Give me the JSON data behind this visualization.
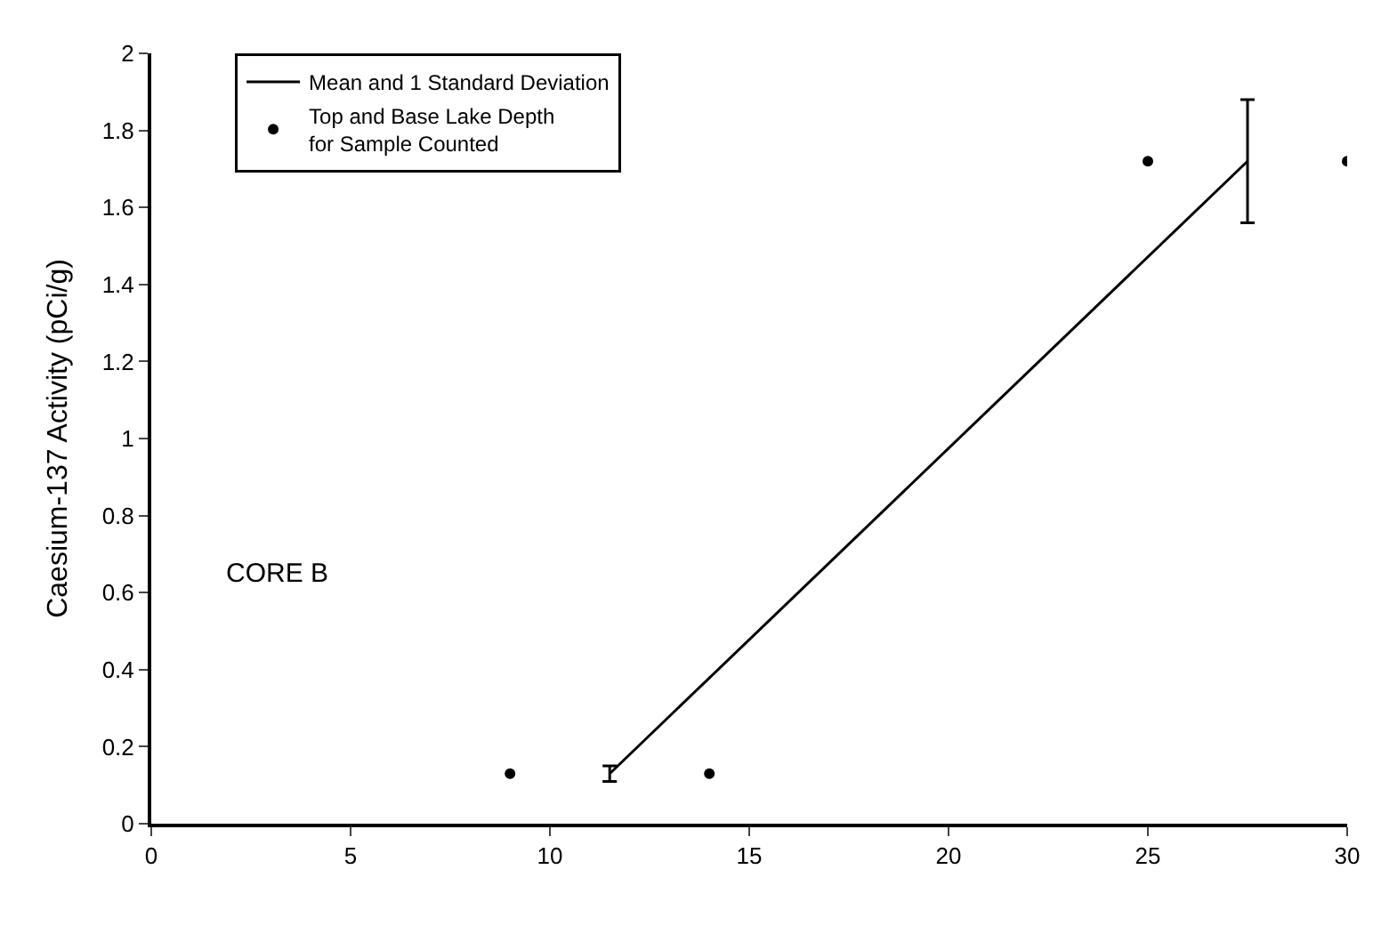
{
  "chart_data": {
    "type": "scatter",
    "ylabel": "Caesium-137 Activity (pCi/g)",
    "annotations": [
      "CORE B"
    ],
    "xlim": [
      0,
      30
    ],
    "xticks": [
      0,
      5,
      10,
      15,
      20,
      25,
      30
    ],
    "ylim": [
      0,
      2
    ],
    "yticks": [
      0,
      0.2,
      0.4,
      0.6,
      0.8,
      1,
      1.2,
      1.4,
      1.6,
      1.8,
      2
    ],
    "legend": "top left",
    "series": [
      {
        "name": "Mean and 1 Standard Deviation",
        "type": "line",
        "color": "#000000",
        "x": [
          11.5,
          27.5
        ],
        "values": [
          0.13,
          1.72
        ],
        "errors": [
          0.02,
          0.16
        ],
        "line_style": "solid"
      },
      {
        "name": "Top and Base Lake Depth\nfor Sample Counted",
        "color": "#000000",
        "x": [
          9,
          14,
          25,
          30
        ],
        "values": [
          0.13,
          0.13,
          1.72,
          1.72
        ],
        "marker": "circle"
      }
    ]
  }
}
